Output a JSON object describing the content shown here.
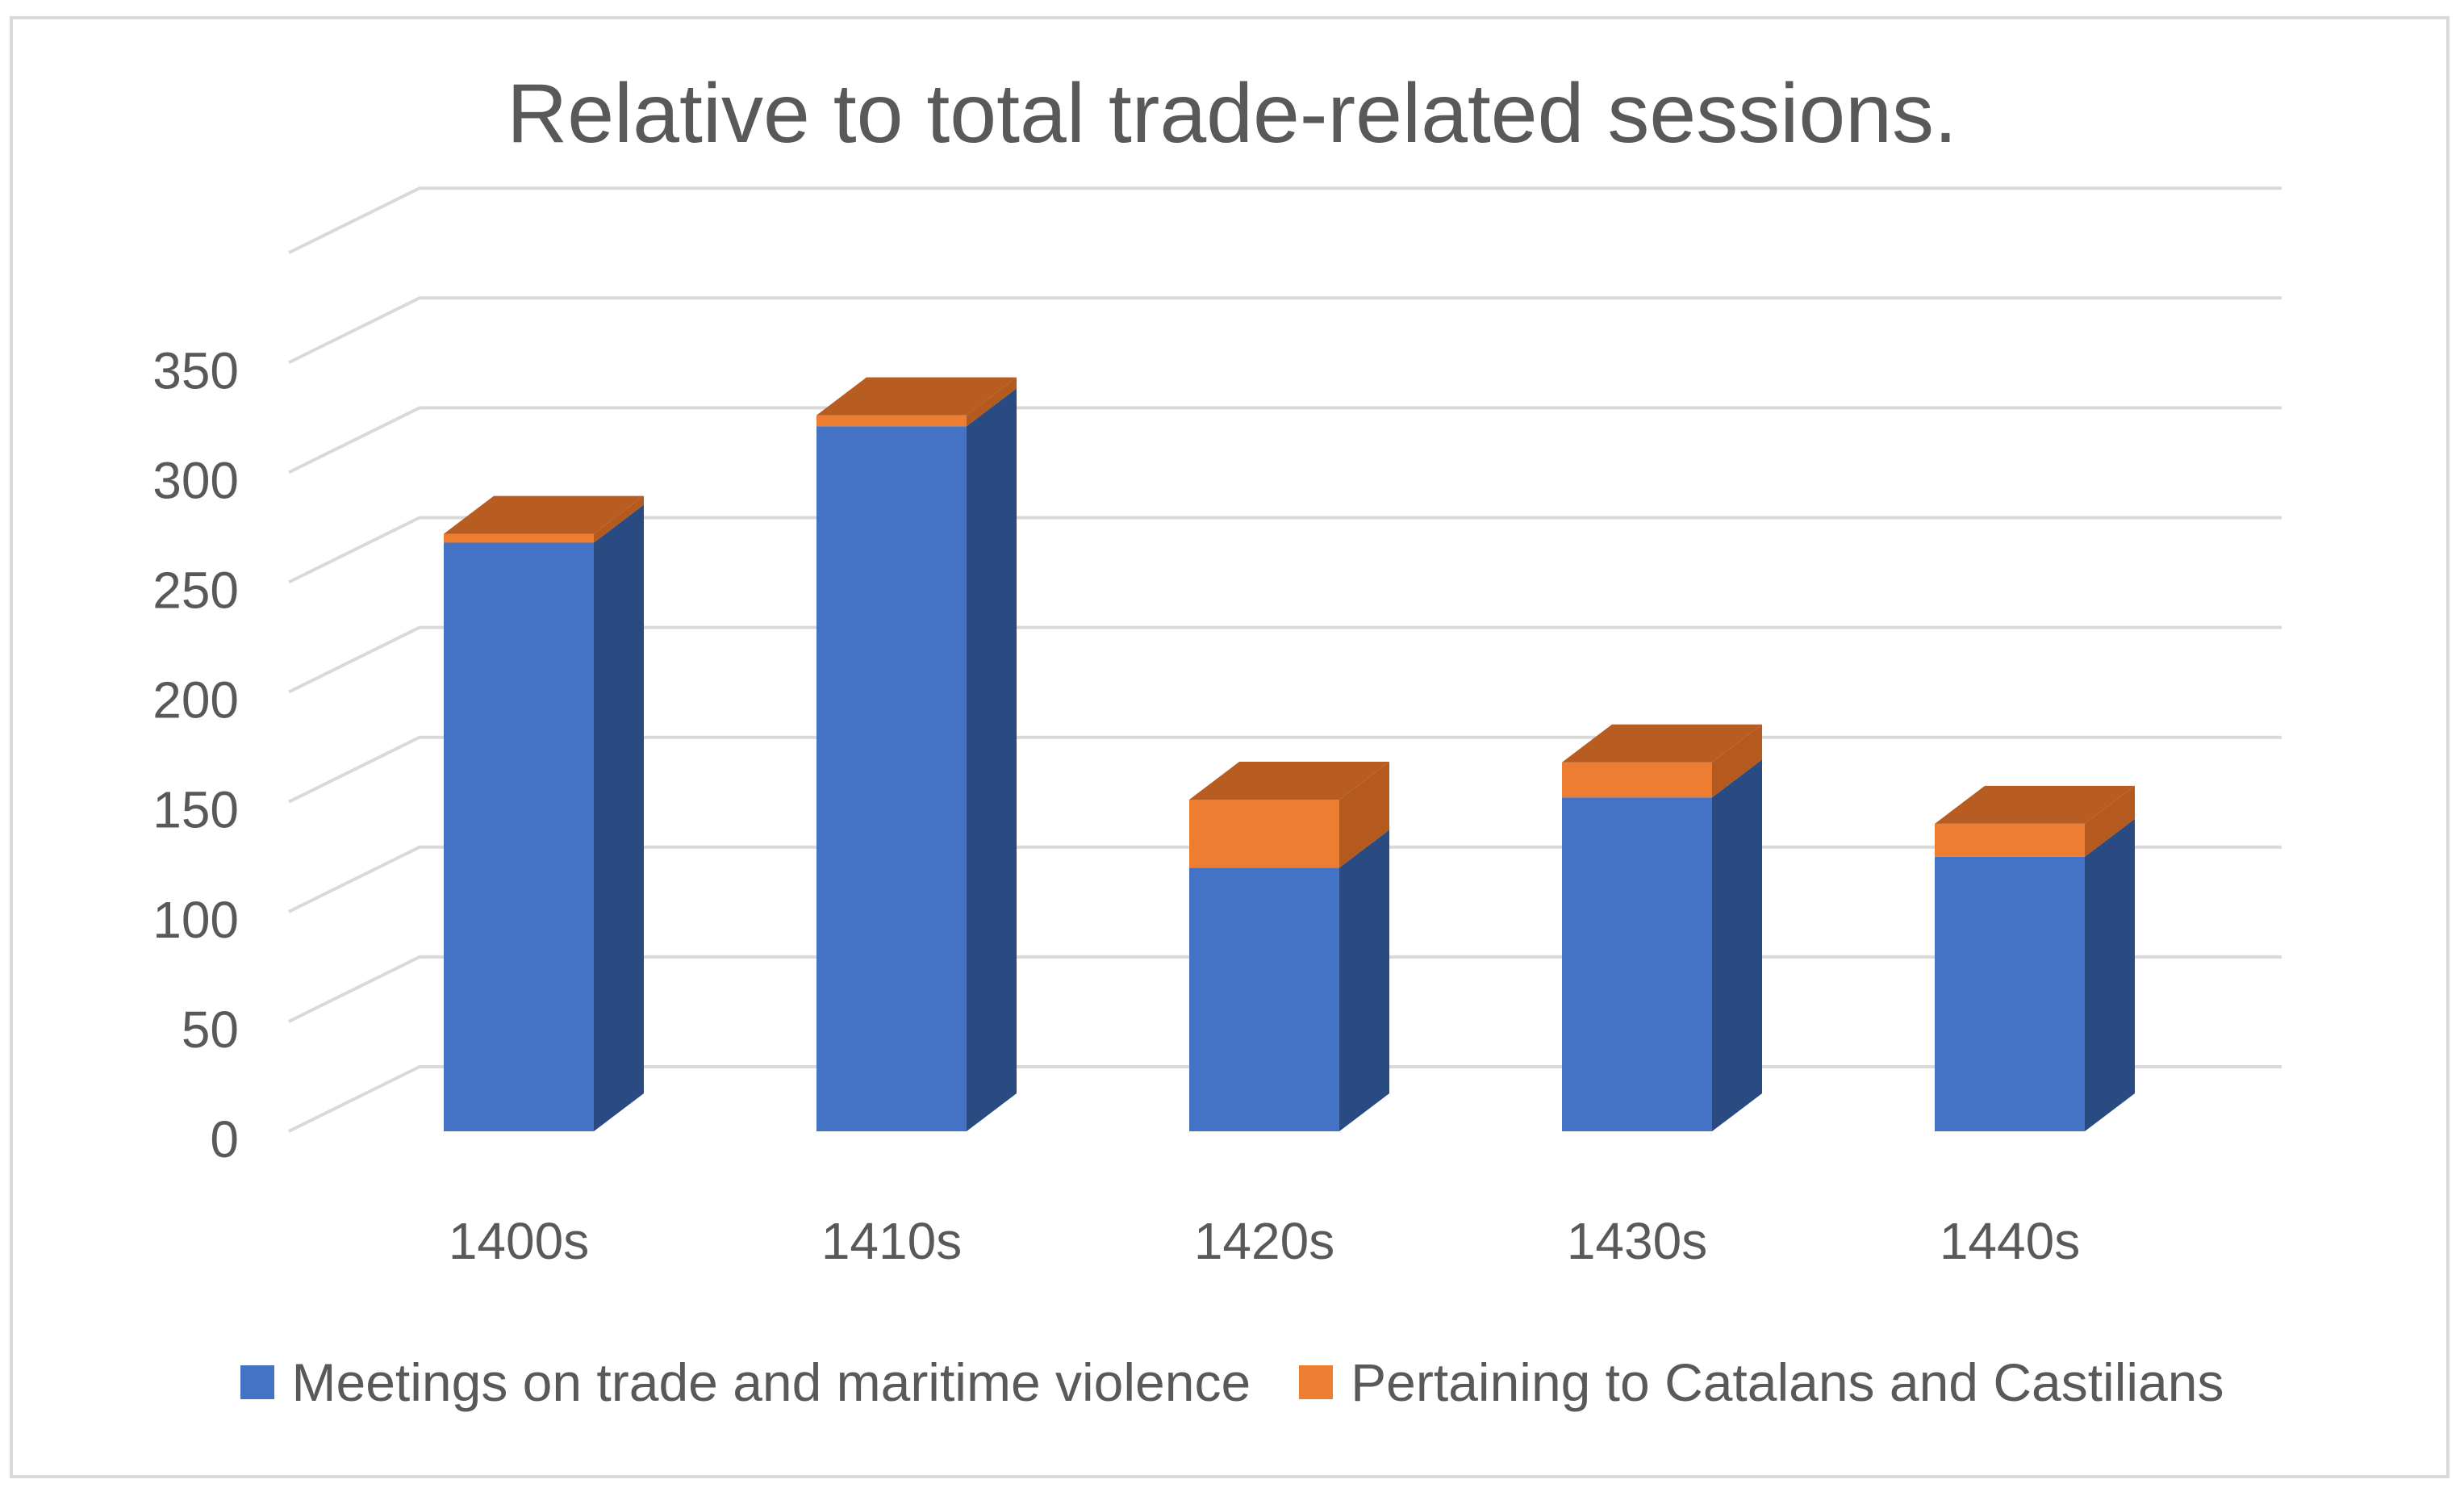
{
  "chart_data": {
    "type": "bar",
    "stacked": true,
    "three_d": true,
    "title": "Relative to total trade-related sessions.",
    "xlabel": "",
    "ylabel": "",
    "categories": [
      "1400s",
      "1410s",
      "1420s",
      "1430s",
      "1440s"
    ],
    "series": [
      {
        "name": "Meetings on trade and maritime violence",
        "values": [
          268,
          321,
          120,
          152,
          125
        ],
        "color": "#4472c4"
      },
      {
        "name": "Pertaining to Catalans and Castilians",
        "values": [
          4,
          5,
          31,
          16,
          15
        ],
        "color": "#ed7d31"
      }
    ],
    "ylim": [
      0,
      350
    ],
    "yticks": [
      0,
      50,
      100,
      150,
      200,
      250,
      300,
      350
    ],
    "grid": true,
    "legend": "bottom"
  }
}
